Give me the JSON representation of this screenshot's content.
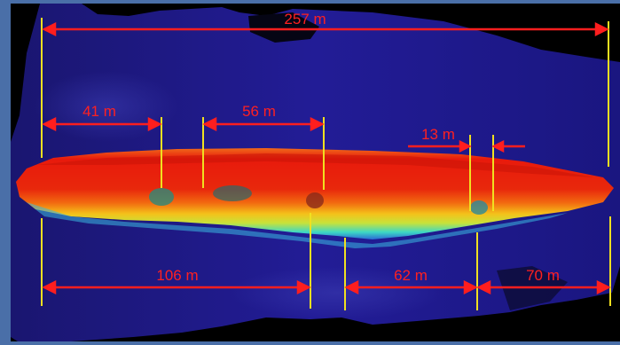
{
  "image": {
    "subject": "sonar-bathymetry-shipwreck",
    "palette": {
      "background": "#000000",
      "seabed": "#1c1a8c",
      "hull_top": "#e8200c",
      "hull_mid": "#f1a71a",
      "hull_edge": "#35d2c8",
      "measure_line": "#ff1e1e",
      "marker_line": "#f0e020",
      "frame": "#4a6fa8"
    }
  },
  "measurements": [
    {
      "id": "overall",
      "label": "257 m"
    },
    {
      "id": "bow-section",
      "label": "41 m"
    },
    {
      "id": "mid-section",
      "label": "56 m"
    },
    {
      "id": "stern-gap",
      "label": "13 m"
    },
    {
      "id": "lower-left",
      "label": "106 m"
    },
    {
      "id": "lower-mid",
      "label": "62 m"
    },
    {
      "id": "lower-right",
      "label": "70 m"
    }
  ]
}
